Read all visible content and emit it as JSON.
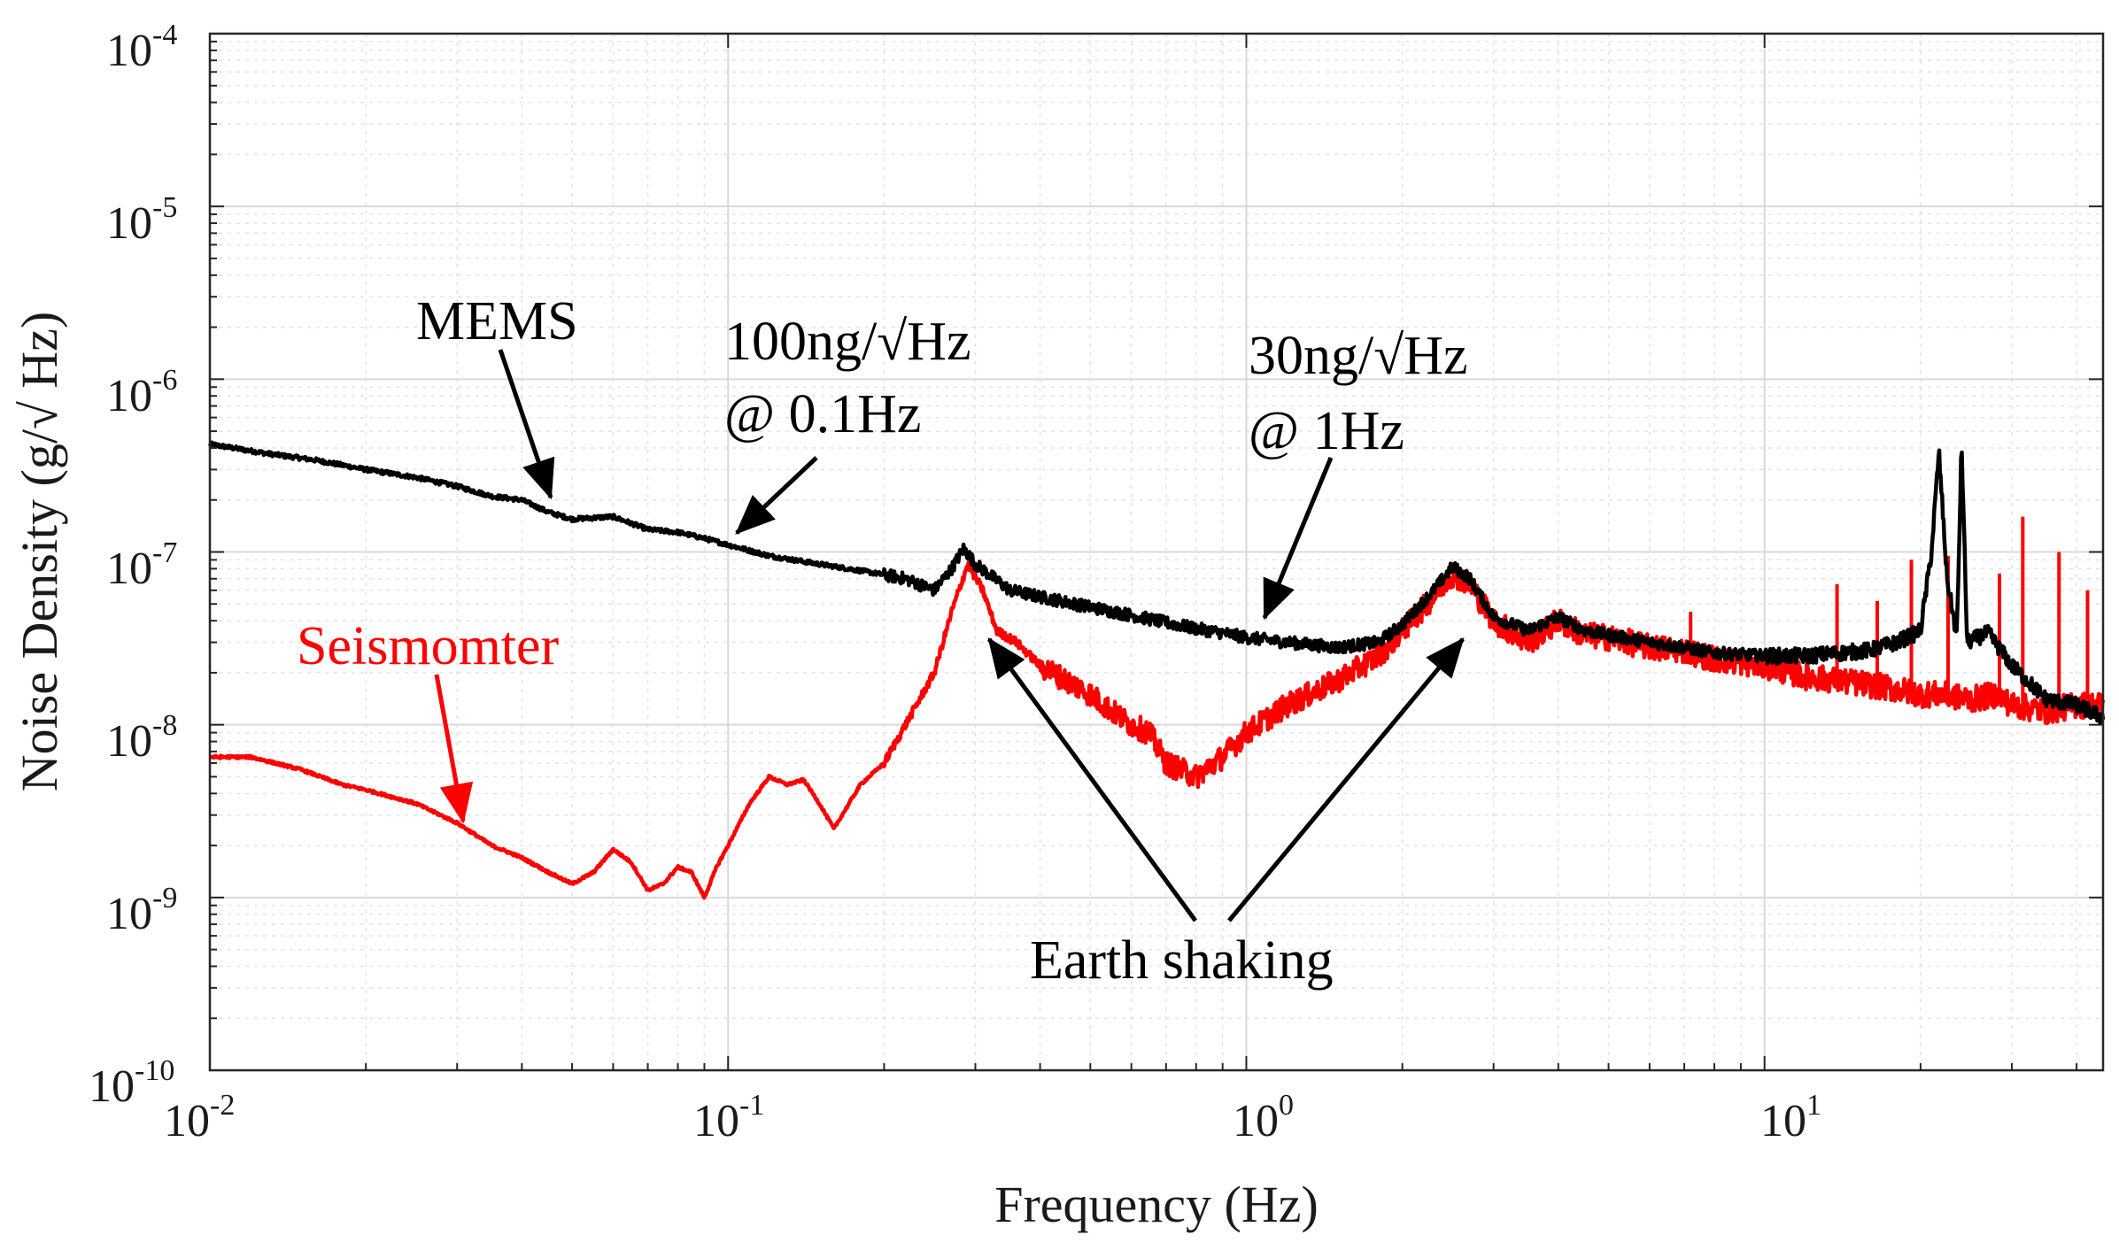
{
  "chart_data": {
    "type": "line",
    "title": "",
    "xlabel": "Frequency (Hz)",
    "ylabel": "Noise Density (g/√ Hz)",
    "xscale": "log",
    "yscale": "log",
    "xlim": [
      0.01,
      45
    ],
    "ylim": [
      1e-10,
      0.0001
    ],
    "grid": true,
    "x_ticks": [
      {
        "base": "10",
        "exp": "-2",
        "value": 0.01
      },
      {
        "base": "10",
        "exp": "-1",
        "value": 0.1
      },
      {
        "base": "10",
        "exp": "0",
        "value": 1
      },
      {
        "base": "10",
        "exp": "1",
        "value": 10
      }
    ],
    "y_ticks": [
      {
        "base": "10",
        "exp": "-10",
        "value": 1e-10
      },
      {
        "base": "10",
        "exp": "-9",
        "value": 1e-09
      },
      {
        "base": "10",
        "exp": "-8",
        "value": 1e-08
      },
      {
        "base": "10",
        "exp": "-7",
        "value": 1e-07
      },
      {
        "base": "10",
        "exp": "-6",
        "value": 1e-06
      },
      {
        "base": "10",
        "exp": "-5",
        "value": 1e-05
      },
      {
        "base": "10",
        "exp": "-4",
        "value": 0.0001
      }
    ],
    "series": [
      {
        "name": "MEMS",
        "color": "#000000",
        "points": [
          [
            0.01,
            4.2e-07
          ],
          [
            0.013,
            3.7e-07
          ],
          [
            0.016,
            3.4e-07
          ],
          [
            0.02,
            3e-07
          ],
          [
            0.025,
            2.7e-07
          ],
          [
            0.03,
            2.4e-07
          ],
          [
            0.035,
            2.1e-07
          ],
          [
            0.04,
            2e-07
          ],
          [
            0.045,
            1.7e-07
          ],
          [
            0.05,
            1.55e-07
          ],
          [
            0.06,
            1.6e-07
          ],
          [
            0.07,
            1.35e-07
          ],
          [
            0.08,
            1.3e-07
          ],
          [
            0.09,
            1.2e-07
          ],
          [
            0.1,
            1.1e-07
          ],
          [
            0.12,
            9.5e-08
          ],
          [
            0.15,
            8.5e-08
          ],
          [
            0.18,
            7.8e-08
          ],
          [
            0.22,
            7e-08
          ],
          [
            0.25,
            6e-08
          ],
          [
            0.27,
            8e-08
          ],
          [
            0.285,
            1.05e-07
          ],
          [
            0.3,
            8.5e-08
          ],
          [
            0.35,
            6e-08
          ],
          [
            0.4,
            5.5e-08
          ],
          [
            0.5,
            4.8e-08
          ],
          [
            0.6,
            4.3e-08
          ],
          [
            0.7,
            3.9e-08
          ],
          [
            0.8,
            3.6e-08
          ],
          [
            0.9,
            3.4e-08
          ],
          [
            1.0,
            3.2e-08
          ],
          [
            1.2,
            3e-08
          ],
          [
            1.5,
            2.8e-08
          ],
          [
            1.8,
            3e-08
          ],
          [
            2.0,
            3.8e-08
          ],
          [
            2.3,
            6e-08
          ],
          [
            2.5,
            8.2e-08
          ],
          [
            2.7,
            7e-08
          ],
          [
            3.0,
            4.2e-08
          ],
          [
            3.5,
            3.5e-08
          ],
          [
            4.0,
            4.2e-08
          ],
          [
            4.5,
            3.5e-08
          ],
          [
            5.0,
            3.3e-08
          ],
          [
            6.0,
            3e-08
          ],
          [
            7.0,
            2.8e-08
          ],
          [
            8.0,
            2.6e-08
          ],
          [
            10.0,
            2.5e-08
          ],
          [
            12.0,
            2.5e-08
          ],
          [
            14.0,
            2.6e-08
          ],
          [
            16.0,
            2.7e-08
          ],
          [
            18.0,
            3e-08
          ],
          [
            20.0,
            3.5e-08
          ],
          [
            21.0,
            1e-07
          ],
          [
            21.7,
            3.8e-07
          ],
          [
            22.5,
            7e-08
          ],
          [
            23.5,
            3.2e-08
          ],
          [
            24.0,
            4.2e-07
          ],
          [
            24.6,
            3e-08
          ],
          [
            27.0,
            3.4e-08
          ],
          [
            30.0,
            2.2e-08
          ],
          [
            35.0,
            1.4e-08
          ],
          [
            40.0,
            1.3e-08
          ],
          [
            45.0,
            1.1e-08
          ]
        ]
      },
      {
        "name": "Seismomter",
        "color": "#ff0000",
        "points": [
          [
            0.01,
            6.5e-09
          ],
          [
            0.012,
            6.5e-09
          ],
          [
            0.015,
            5.5e-09
          ],
          [
            0.018,
            4.5e-09
          ],
          [
            0.02,
            4.2e-09
          ],
          [
            0.025,
            3.5e-09
          ],
          [
            0.03,
            2.7e-09
          ],
          [
            0.035,
            2e-09
          ],
          [
            0.04,
            1.7e-09
          ],
          [
            0.045,
            1.4e-09
          ],
          [
            0.05,
            1.2e-09
          ],
          [
            0.055,
            1.4e-09
          ],
          [
            0.06,
            1.9e-09
          ],
          [
            0.065,
            1.6e-09
          ],
          [
            0.07,
            1.1e-09
          ],
          [
            0.075,
            1.2e-09
          ],
          [
            0.08,
            1.5e-09
          ],
          [
            0.085,
            1.4e-09
          ],
          [
            0.09,
            1e-09
          ],
          [
            0.095,
            1.5e-09
          ],
          [
            0.1,
            2e-09
          ],
          [
            0.11,
            3.5e-09
          ],
          [
            0.12,
            5e-09
          ],
          [
            0.13,
            4.5e-09
          ],
          [
            0.14,
            4.8e-09
          ],
          [
            0.15,
            3.5e-09
          ],
          [
            0.16,
            2.5e-09
          ],
          [
            0.18,
            4.5e-09
          ],
          [
            0.2,
            6e-09
          ],
          [
            0.22,
            1e-08
          ],
          [
            0.25,
            2e-08
          ],
          [
            0.27,
            4.5e-08
          ],
          [
            0.29,
            8.5e-08
          ],
          [
            0.31,
            6e-08
          ],
          [
            0.33,
            3.5e-08
          ],
          [
            0.36,
            3e-08
          ],
          [
            0.4,
            2.2e-08
          ],
          [
            0.45,
            1.8e-08
          ],
          [
            0.5,
            1.5e-08
          ],
          [
            0.55,
            1.2e-08
          ],
          [
            0.6,
            1e-08
          ],
          [
            0.65,
            9e-09
          ],
          [
            0.7,
            6e-09
          ],
          [
            0.8,
            5e-09
          ],
          [
            0.9,
            6.5e-09
          ],
          [
            1.0,
            9e-09
          ],
          [
            1.2,
            1.3e-08
          ],
          [
            1.5,
            1.8e-08
          ],
          [
            1.8,
            2.5e-08
          ],
          [
            2.0,
            3.5e-08
          ],
          [
            2.3,
            5.5e-08
          ],
          [
            2.5,
            7.5e-08
          ],
          [
            2.7,
            6.5e-08
          ],
          [
            3.0,
            4e-08
          ],
          [
            3.5,
            3e-08
          ],
          [
            4.0,
            4e-08
          ],
          [
            4.5,
            3.3e-08
          ],
          [
            5.0,
            3.2e-08
          ],
          [
            6.0,
            2.8e-08
          ],
          [
            7.0,
            2.7e-08
          ],
          [
            8.0,
            2.4e-08
          ],
          [
            10.0,
            2.2e-08
          ],
          [
            12.0,
            1.9e-08
          ],
          [
            14.0,
            1.8e-08
          ],
          [
            16.0,
            1.7e-08
          ],
          [
            18.0,
            1.6e-08
          ],
          [
            20.0,
            1.5e-08
          ],
          [
            22.0,
            1.5e-08
          ],
          [
            25.0,
            1.4e-08
          ],
          [
            28.0,
            1.5e-08
          ],
          [
            30.0,
            1.3e-08
          ],
          [
            35.0,
            1.2e-08
          ],
          [
            40.0,
            1.3e-08
          ],
          [
            45.0,
            1.3e-08
          ]
        ]
      }
    ],
    "annotations": [
      {
        "id": "mems",
        "text": "MEMS",
        "color": "#000000"
      },
      {
        "id": "level1a",
        "text": "100ng/√Hz",
        "color": "#000000"
      },
      {
        "id": "level1b",
        "text": "@ 0.1Hz",
        "color": "#000000"
      },
      {
        "id": "level2a",
        "text": "30ng/√Hz",
        "color": "#000000"
      },
      {
        "id": "level2b",
        "text": "@ 1Hz",
        "color": "#000000"
      },
      {
        "id": "seis",
        "text": "Seismomter",
        "color": "#ff0000"
      },
      {
        "id": "earth",
        "text": "Earth shaking",
        "color": "#000000"
      }
    ]
  }
}
